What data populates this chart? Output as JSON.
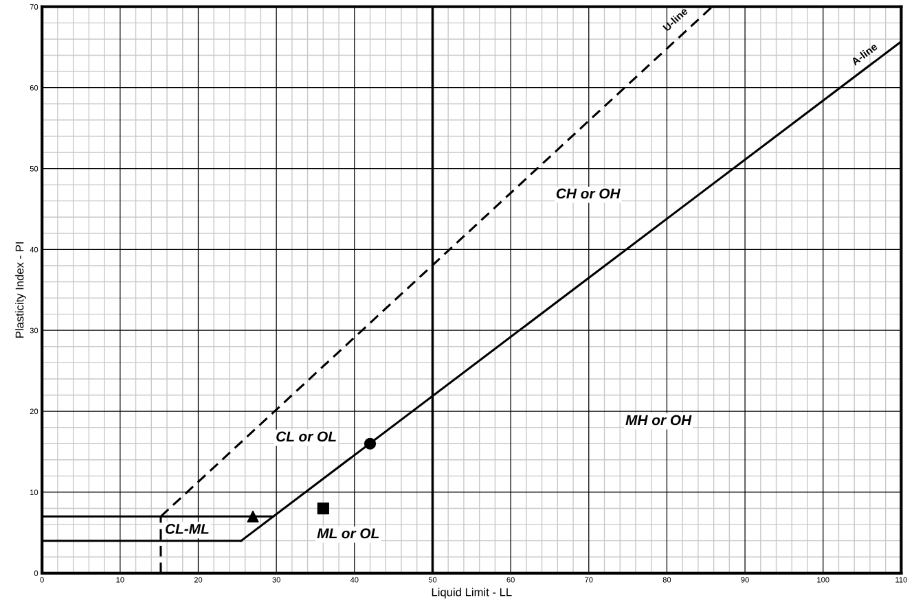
{
  "chart_data": {
    "type": "line",
    "xlabel": "Liquid Limit - LL",
    "ylabel": "Plasticity Index - PI",
    "xlim": [
      0,
      110
    ],
    "ylim": [
      0,
      70
    ],
    "xticks": [
      0,
      10,
      20,
      30,
      40,
      50,
      60,
      70,
      80,
      90,
      100,
      110
    ],
    "yticks": [
      0,
      10,
      20,
      30,
      40,
      50,
      60,
      70
    ],
    "grid": true,
    "legend": false,
    "series": [
      {
        "name": "U-line",
        "type": "line",
        "line_style": "dashed",
        "color": "#000000",
        "x": [
          15.2,
          85.8
        ],
        "values": [
          7,
          70
        ]
      },
      {
        "name": "A-line",
        "type": "line",
        "line_style": "solid",
        "color": "#000000",
        "x": [
          25.5,
          110
        ],
        "values": [
          4,
          65.7
        ]
      },
      {
        "type": "line",
        "line_style": "solid",
        "color": "#000000",
        "x": [
          0,
          25.5
        ],
        "values": [
          4,
          4
        ]
      },
      {
        "type": "line",
        "line_style": "solid",
        "color": "#000000",
        "x": [
          0,
          29.6
        ],
        "values": [
          7,
          7
        ]
      },
      {
        "type": "line",
        "line_style": "dashed",
        "color": "#000000",
        "x": [
          15.2,
          15.2
        ],
        "values": [
          0,
          7
        ]
      },
      {
        "type": "scatter",
        "marker": "triangle",
        "color": "#000000",
        "x": [
          27
        ],
        "values": [
          7
        ]
      },
      {
        "type": "scatter",
        "marker": "square",
        "color": "#000000",
        "x": [
          36
        ],
        "values": [
          8
        ]
      },
      {
        "type": "scatter",
        "marker": "circle",
        "color": "#000000",
        "x": [
          42
        ],
        "values": [
          16
        ]
      }
    ],
    "ref_lines": [
      {
        "axis": "x",
        "value": 50,
        "color": "#000000"
      }
    ],
    "annotations": [
      "CH or OH",
      "MH or OH",
      "CL or OL",
      "ML or OL",
      "CL-ML"
    ]
  }
}
